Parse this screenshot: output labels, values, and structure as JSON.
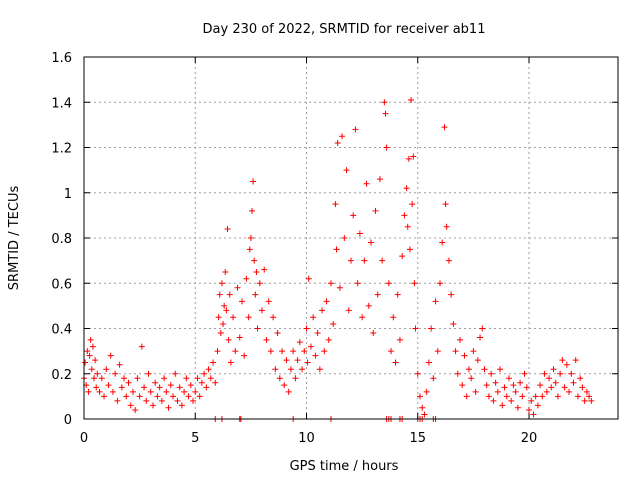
{
  "chart_data": {
    "type": "scatter",
    "title": "Day 230 of 2022, SRMTID for receiver ab11",
    "xlabel": "GPS time / hours",
    "ylabel": "SRMTID / TECUs",
    "xlim": [
      0,
      24
    ],
    "ylim": [
      0,
      1.6
    ],
    "x_ticks": [
      0,
      5,
      10,
      15,
      20
    ],
    "x_tick_labels": [
      "0",
      "5",
      "10",
      "15",
      "20"
    ],
    "y_ticks": [
      0,
      0.2,
      0.4,
      0.6,
      0.8,
      1.0,
      1.2,
      1.4,
      1.6
    ],
    "y_tick_labels": [
      "0",
      "0.2",
      "0.4",
      "0.6",
      "0.8",
      "1",
      "1.2",
      "1.4",
      "1.6"
    ],
    "grid": true,
    "marker": "plus",
    "series": [
      {
        "name": "ab11",
        "color": "#ff0000",
        "points": [
          [
            0.0,
            0.18
          ],
          [
            0.05,
            0.25
          ],
          [
            0.1,
            0.15
          ],
          [
            0.15,
            0.3
          ],
          [
            0.2,
            0.12
          ],
          [
            0.25,
            0.28
          ],
          [
            0.3,
            0.35
          ],
          [
            0.35,
            0.22
          ],
          [
            0.4,
            0.32
          ],
          [
            0.45,
            0.18
          ],
          [
            0.5,
            0.26
          ],
          [
            0.55,
            0.14
          ],
          [
            0.6,
            0.2
          ],
          [
            0.7,
            0.12
          ],
          [
            0.8,
            0.18
          ],
          [
            0.9,
            0.1
          ],
          [
            1.0,
            0.22
          ],
          [
            1.1,
            0.15
          ],
          [
            1.2,
            0.28
          ],
          [
            1.3,
            0.12
          ],
          [
            1.4,
            0.2
          ],
          [
            1.5,
            0.08
          ],
          [
            1.6,
            0.24
          ],
          [
            1.7,
            0.14
          ],
          [
            1.8,
            0.18
          ],
          [
            1.9,
            0.1
          ],
          [
            2.0,
            0.16
          ],
          [
            2.1,
            0.06
          ],
          [
            2.2,
            0.12
          ],
          [
            2.3,
            0.04
          ],
          [
            2.4,
            0.18
          ],
          [
            2.5,
            0.1
          ],
          [
            2.6,
            0.32
          ],
          [
            2.7,
            0.14
          ],
          [
            2.8,
            0.08
          ],
          [
            2.9,
            0.2
          ],
          [
            3.0,
            0.12
          ],
          [
            3.1,
            0.06
          ],
          [
            3.2,
            0.16
          ],
          [
            3.3,
            0.1
          ],
          [
            3.4,
            0.14
          ],
          [
            3.5,
            0.08
          ],
          [
            3.6,
            0.18
          ],
          [
            3.7,
            0.12
          ],
          [
            3.8,
            0.05
          ],
          [
            3.9,
            0.15
          ],
          [
            4.0,
            0.1
          ],
          [
            4.1,
            0.2
          ],
          [
            4.2,
            0.08
          ],
          [
            4.3,
            0.14
          ],
          [
            4.4,
            0.06
          ],
          [
            4.5,
            0.12
          ],
          [
            4.6,
            0.18
          ],
          [
            4.7,
            0.1
          ],
          [
            4.8,
            0.15
          ],
          [
            4.9,
            0.08
          ],
          [
            5.0,
            0.12
          ],
          [
            5.1,
            0.18
          ],
          [
            5.2,
            0.1
          ],
          [
            5.3,
            0.16
          ],
          [
            5.4,
            0.2
          ],
          [
            5.5,
            0.14
          ],
          [
            5.6,
            0.22
          ],
          [
            5.7,
            0.18
          ],
          [
            5.8,
            0.25
          ],
          [
            5.9,
            0.16
          ],
          [
            6.0,
            0.3
          ],
          [
            6.05,
            0.45
          ],
          [
            6.1,
            0.55
          ],
          [
            6.15,
            0.38
          ],
          [
            6.2,
            0.6
          ],
          [
            6.25,
            0.42
          ],
          [
            6.3,
            0.5
          ],
          [
            6.35,
            0.65
          ],
          [
            6.4,
            0.48
          ],
          [
            6.45,
            0.84
          ],
          [
            6.5,
            0.35
          ],
          [
            6.55,
            0.55
          ],
          [
            6.6,
            0.25
          ],
          [
            6.7,
            0.45
          ],
          [
            6.8,
            0.3
          ],
          [
            6.9,
            0.58
          ],
          [
            7.0,
            0.36
          ],
          [
            7.1,
            0.52
          ],
          [
            7.2,
            0.28
          ],
          [
            7.3,
            0.62
          ],
          [
            7.4,
            0.45
          ],
          [
            7.45,
            0.75
          ],
          [
            7.5,
            0.8
          ],
          [
            7.55,
            0.92
          ],
          [
            7.6,
            1.05
          ],
          [
            7.65,
            0.7
          ],
          [
            7.7,
            0.55
          ],
          [
            7.75,
            0.65
          ],
          [
            7.8,
            0.4
          ],
          [
            7.9,
            0.6
          ],
          [
            8.0,
            0.48
          ],
          [
            8.1,
            0.66
          ],
          [
            8.2,
            0.35
          ],
          [
            8.3,
            0.52
          ],
          [
            8.4,
            0.3
          ],
          [
            8.5,
            0.45
          ],
          [
            8.6,
            0.22
          ],
          [
            8.7,
            0.38
          ],
          [
            8.8,
            0.18
          ],
          [
            8.9,
            0.3
          ],
          [
            9.0,
            0.15
          ],
          [
            9.1,
            0.26
          ],
          [
            9.2,
            0.12
          ],
          [
            9.3,
            0.22
          ],
          [
            9.4,
            0.3
          ],
          [
            9.5,
            0.18
          ],
          [
            9.6,
            0.26
          ],
          [
            9.7,
            0.34
          ],
          [
            9.8,
            0.22
          ],
          [
            9.9,
            0.3
          ],
          [
            10.0,
            0.4
          ],
          [
            10.05,
            0.25
          ],
          [
            10.1,
            0.62
          ],
          [
            10.2,
            0.32
          ],
          [
            10.3,
            0.45
          ],
          [
            10.4,
            0.28
          ],
          [
            10.5,
            0.38
          ],
          [
            10.6,
            0.22
          ],
          [
            10.7,
            0.48
          ],
          [
            10.8,
            0.3
          ],
          [
            10.9,
            0.52
          ],
          [
            11.0,
            0.35
          ],
          [
            11.1,
            0.6
          ],
          [
            11.2,
            0.42
          ],
          [
            11.3,
            0.95
          ],
          [
            11.35,
            0.75
          ],
          [
            11.4,
            1.22
          ],
          [
            11.5,
            0.58
          ],
          [
            11.6,
            1.25
          ],
          [
            11.7,
            0.8
          ],
          [
            11.8,
            1.1
          ],
          [
            11.9,
            0.48
          ],
          [
            12.0,
            0.7
          ],
          [
            12.1,
            0.9
          ],
          [
            12.2,
            1.28
          ],
          [
            12.3,
            0.6
          ],
          [
            12.4,
            0.82
          ],
          [
            12.5,
            0.45
          ],
          [
            12.6,
            0.7
          ],
          [
            12.7,
            1.04
          ],
          [
            12.8,
            0.5
          ],
          [
            12.9,
            0.78
          ],
          [
            13.0,
            0.38
          ],
          [
            13.1,
            0.92
          ],
          [
            13.2,
            0.55
          ],
          [
            13.3,
            1.06
          ],
          [
            13.4,
            0.7
          ],
          [
            13.5,
            1.4
          ],
          [
            13.55,
            1.35
          ],
          [
            13.6,
            1.2
          ],
          [
            13.7,
            0.6
          ],
          [
            13.8,
            0.3
          ],
          [
            13.9,
            0.45
          ],
          [
            14.0,
            0.25
          ],
          [
            14.1,
            0.55
          ],
          [
            14.2,
            0.35
          ],
          [
            14.3,
            0.72
          ],
          [
            14.4,
            0.9
          ],
          [
            14.5,
            1.02
          ],
          [
            14.55,
            0.85
          ],
          [
            14.6,
            1.15
          ],
          [
            14.65,
            0.75
          ],
          [
            14.7,
            1.41
          ],
          [
            14.75,
            0.95
          ],
          [
            14.8,
            1.16
          ],
          [
            14.85,
            0.6
          ],
          [
            14.9,
            0.4
          ],
          [
            15.0,
            0.2
          ],
          [
            15.1,
            0.1
          ],
          [
            15.2,
            0.05
          ],
          [
            15.3,
            0.02
          ],
          [
            15.4,
            0.12
          ],
          [
            15.5,
            0.25
          ],
          [
            15.6,
            0.4
          ],
          [
            15.7,
            0.18
          ],
          [
            15.8,
            0.52
          ],
          [
            15.9,
            0.3
          ],
          [
            16.0,
            0.6
          ],
          [
            16.1,
            0.78
          ],
          [
            16.2,
            1.29
          ],
          [
            16.25,
            0.95
          ],
          [
            16.3,
            0.85
          ],
          [
            16.4,
            0.7
          ],
          [
            16.5,
            0.55
          ],
          [
            16.6,
            0.42
          ],
          [
            16.7,
            0.3
          ],
          [
            16.8,
            0.2
          ],
          [
            16.9,
            0.35
          ],
          [
            17.0,
            0.15
          ],
          [
            17.1,
            0.28
          ],
          [
            17.2,
            0.1
          ],
          [
            17.3,
            0.22
          ],
          [
            17.4,
            0.18
          ],
          [
            17.5,
            0.3
          ],
          [
            17.6,
            0.12
          ],
          [
            17.7,
            0.26
          ],
          [
            17.8,
            0.36
          ],
          [
            17.9,
            0.4
          ],
          [
            18.0,
            0.22
          ],
          [
            18.1,
            0.15
          ],
          [
            18.2,
            0.1
          ],
          [
            18.3,
            0.2
          ],
          [
            18.4,
            0.08
          ],
          [
            18.5,
            0.16
          ],
          [
            18.6,
            0.12
          ],
          [
            18.7,
            0.22
          ],
          [
            18.8,
            0.06
          ],
          [
            18.9,
            0.14
          ],
          [
            19.0,
            0.1
          ],
          [
            19.1,
            0.18
          ],
          [
            19.2,
            0.08
          ],
          [
            19.3,
            0.15
          ],
          [
            19.4,
            0.12
          ],
          [
            19.5,
            0.05
          ],
          [
            19.6,
            0.16
          ],
          [
            19.7,
            0.1
          ],
          [
            19.8,
            0.2
          ],
          [
            19.9,
            0.14
          ],
          [
            20.0,
            0.04
          ],
          [
            20.1,
            0.08
          ],
          [
            20.2,
            0.02
          ],
          [
            20.3,
            0.1
          ],
          [
            20.4,
            0.06
          ],
          [
            20.5,
            0.15
          ],
          [
            20.6,
            0.1
          ],
          [
            20.7,
            0.2
          ],
          [
            20.8,
            0.12
          ],
          [
            20.9,
            0.18
          ],
          [
            21.0,
            0.14
          ],
          [
            21.1,
            0.22
          ],
          [
            21.2,
            0.16
          ],
          [
            21.3,
            0.1
          ],
          [
            21.4,
            0.2
          ],
          [
            21.5,
            0.26
          ],
          [
            21.6,
            0.14
          ],
          [
            21.7,
            0.24
          ],
          [
            21.8,
            0.12
          ],
          [
            21.9,
            0.2
          ],
          [
            22.0,
            0.16
          ],
          [
            22.1,
            0.26
          ],
          [
            22.2,
            0.1
          ],
          [
            22.3,
            0.18
          ],
          [
            22.4,
            0.14
          ],
          [
            22.5,
            0.08
          ],
          [
            22.6,
            0.12
          ],
          [
            22.7,
            0.1
          ],
          [
            22.8,
            0.08
          ],
          [
            5.9,
            0.0
          ],
          [
            6.2,
            0.0
          ],
          [
            7.0,
            0.0
          ],
          [
            7.05,
            0.0
          ],
          [
            9.4,
            0.0
          ],
          [
            11.1,
            0.0
          ],
          [
            13.6,
            0.0
          ],
          [
            13.7,
            0.0
          ],
          [
            13.8,
            0.0
          ],
          [
            14.2,
            0.0
          ],
          [
            14.3,
            0.0
          ],
          [
            15.0,
            0.0
          ],
          [
            15.1,
            0.0
          ],
          [
            15.2,
            0.0
          ],
          [
            15.7,
            0.0
          ],
          [
            15.8,
            0.0
          ]
        ]
      }
    ]
  }
}
